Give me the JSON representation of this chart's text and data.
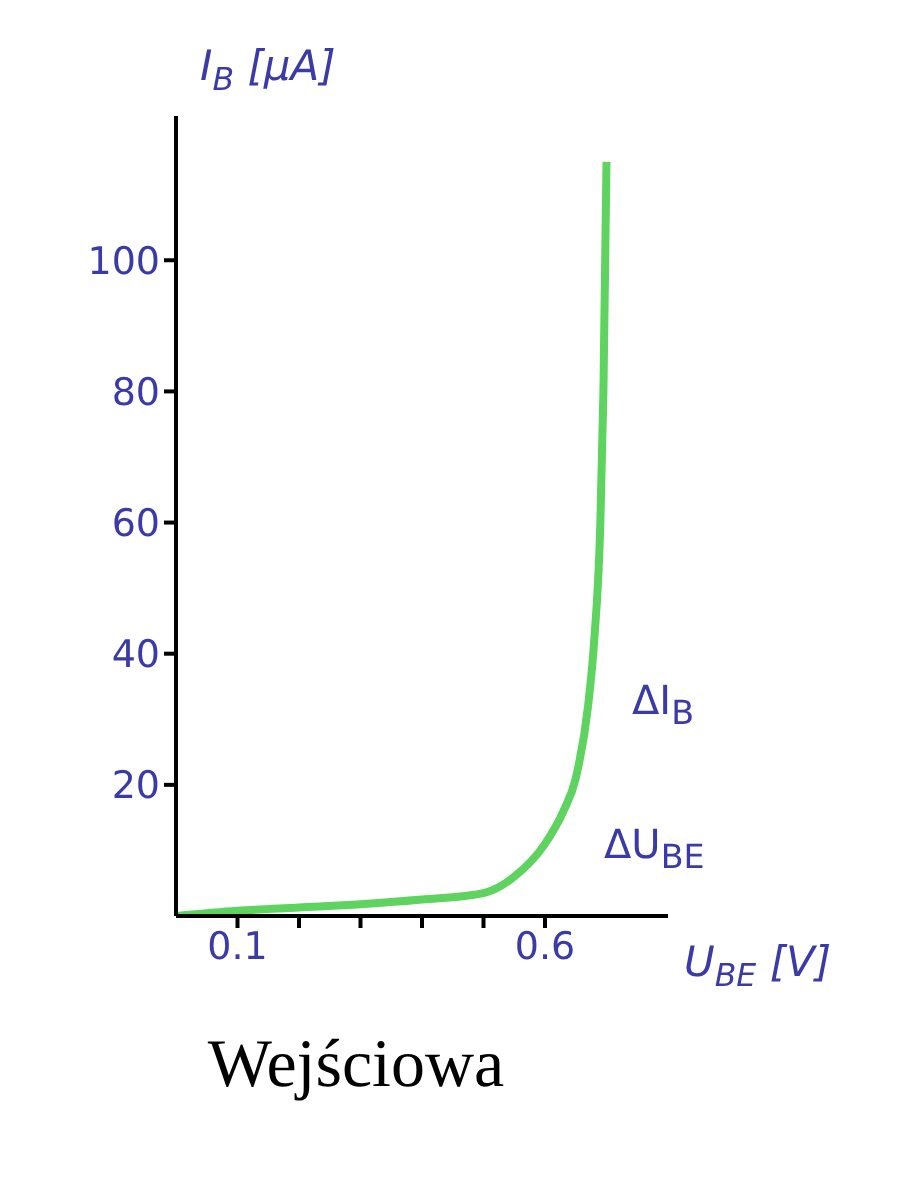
{
  "chart_data": {
    "type": "line",
    "title": "Wejściowa",
    "xlabel": "U$_{BE}$ [V]",
    "ylabel": "I$_{B}$ [μA]",
    "x": [
      0,
      0.1,
      0.2,
      0.3,
      0.4,
      0.5,
      0.55,
      0.6,
      0.63,
      0.65,
      0.67,
      0.68,
      0.69,
      0.695,
      0.7
    ],
    "series": [
      {
        "color": "#5fd35f",
        "values": [
          0,
          0.8,
          1.3,
          1.8,
          2.5,
          3.5,
          6,
          11,
          16,
          21,
          32,
          42,
          60,
          80,
          115
        ]
      }
    ],
    "xlim": [
      0,
      0.8
    ],
    "xticks": [
      0.1,
      {
        "value": 0.2,
        "label": null
      },
      {
        "value": 0.3,
        "label": null
      },
      {
        "value": 0.4,
        "label": null
      },
      {
        "value": 0.5,
        "label": null
      },
      0.6
    ],
    "ylim": [
      0,
      122
    ],
    "yticks": [
      20,
      40,
      60,
      80,
      100
    ],
    "annotations": [
      "ΔI$_{B}$",
      "ΔU$_{BE}$"
    ],
    "grid": false,
    "legend": false,
    "marker": "none",
    "line_style": "solid"
  }
}
